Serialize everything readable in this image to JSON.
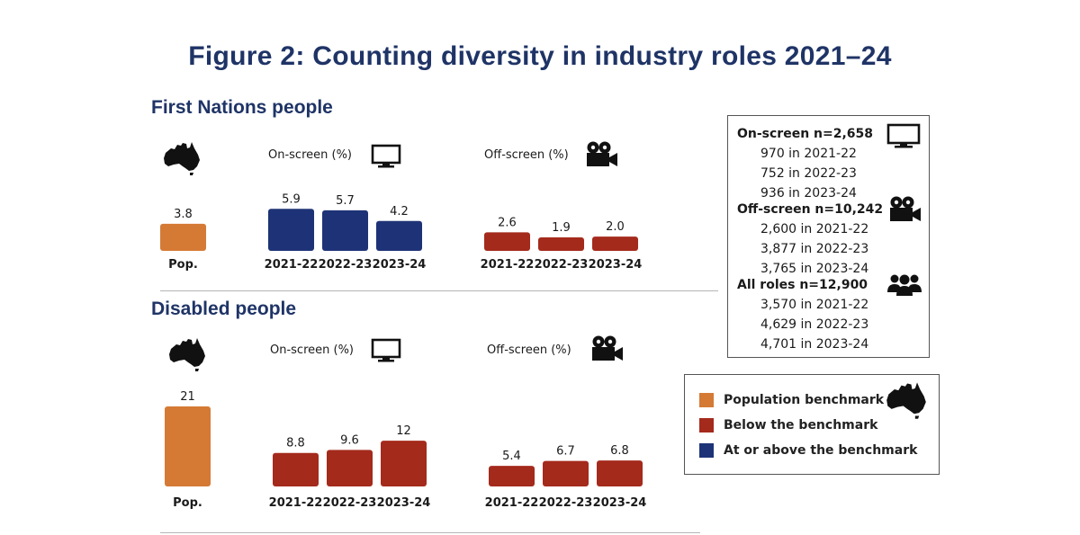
{
  "title": "Figure 2: Counting diversity in industry roles 2021–24",
  "colors": {
    "population": "#d57a35",
    "below": "#a42a1c",
    "above": "#1e3377",
    "title": "#1f3466"
  },
  "chart_data": [
    {
      "type": "bar",
      "section": "First Nations people",
      "ylim": [
        0,
        12
      ],
      "panels": [
        {
          "label": "",
          "categories": [
            "Pop."
          ],
          "values": [
            3.8
          ],
          "value_labels": [
            "3.8"
          ],
          "status": [
            "population"
          ]
        },
        {
          "label": "On-screen (%)",
          "categories": [
            "2021-22",
            "2022-23",
            "2023-24"
          ],
          "values": [
            5.9,
            5.7,
            4.2
          ],
          "value_labels": [
            "5.9",
            "5.7",
            "4.2"
          ],
          "status": [
            "above",
            "above",
            "above"
          ]
        },
        {
          "label": "Off-screen (%)",
          "categories": [
            "2021-22",
            "2022-23",
            "2023-24"
          ],
          "values": [
            2.6,
            1.9,
            2.0
          ],
          "value_labels": [
            "2.6",
            "1.9",
            "2.0"
          ],
          "status": [
            "below",
            "below",
            "below"
          ]
        }
      ]
    },
    {
      "type": "bar",
      "section": "Disabled people",
      "ylim": [
        0,
        21
      ],
      "panels": [
        {
          "label": "",
          "categories": [
            "Pop."
          ],
          "values": [
            21
          ],
          "value_labels": [
            "21"
          ],
          "status": [
            "population"
          ]
        },
        {
          "label": "On-screen (%)",
          "categories": [
            "2021-22",
            "2022-23",
            "2023-24"
          ],
          "values": [
            8.8,
            9.6,
            12
          ],
          "value_labels": [
            "8.8",
            "9.6",
            "12"
          ],
          "status": [
            "below",
            "below",
            "below"
          ]
        },
        {
          "label": "Off-screen (%)",
          "categories": [
            "2021-22",
            "2022-23",
            "2023-24"
          ],
          "values": [
            5.4,
            6.7,
            6.8
          ],
          "value_labels": [
            "5.4",
            "6.7",
            "6.8"
          ],
          "status": [
            "below",
            "below",
            "below"
          ]
        }
      ]
    }
  ],
  "sample_box": {
    "groups": [
      {
        "heading": "On-screen n=2,658",
        "icon": "tv-icon",
        "lines": [
          "970 in 2021-22",
          "752 in 2022-23",
          "936 in 2023-24"
        ]
      },
      {
        "heading": "Off-screen n=10,242",
        "icon": "film-camera-icon",
        "lines": [
          "2,600 in 2021-22",
          "3,877 in 2022-23",
          "3,765 in 2023-24"
        ]
      },
      {
        "heading": "All roles n=12,900",
        "icon": "people-group-icon",
        "lines": [
          "3,570 in 2021-22",
          "4,629 in 2022-23",
          "4,701 in 2023-24"
        ]
      }
    ]
  },
  "legend": [
    {
      "label": "Population benchmark",
      "status": "population"
    },
    {
      "label": "Below the benchmark",
      "status": "below"
    },
    {
      "label": "At or above the benchmark",
      "status": "above"
    }
  ]
}
